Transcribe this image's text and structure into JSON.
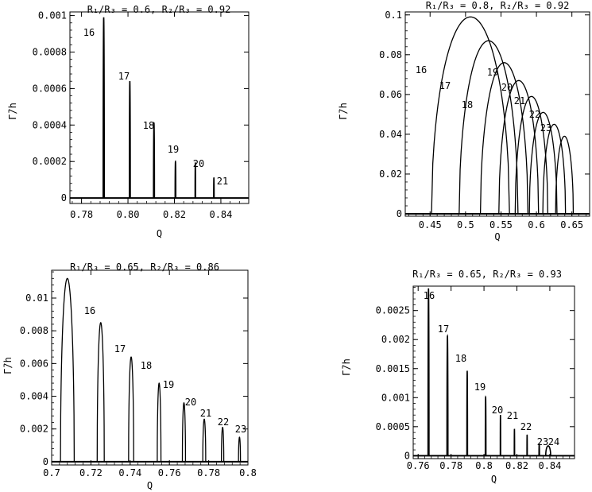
{
  "chart_data": [
    {
      "type": "line",
      "title": "R₁/R₃ = 0.6, R₂/R₃ = 0.92",
      "xlabel": "Q",
      "ylabel": "Γ̄/h",
      "xlim": [
        0.775,
        0.852
      ],
      "ylim": [
        -3e-05,
        0.00102
      ],
      "x_ticks": [
        0.78,
        0.8,
        0.82,
        0.84
      ],
      "x_tick_labels": [
        "0.78",
        "0.80",
        "0.82",
        "0.84"
      ],
      "y_ticks": [
        0,
        0.0002,
        0.0004,
        0.0006,
        0.0008,
        0.001
      ],
      "y_tick_labels": [
        "0",
        "0.0002",
        "0.0004",
        "0.0006",
        "0.0008",
        "0.001"
      ],
      "shape": "spike",
      "resonances": [
        {
          "label": "16",
          "center": 0.7895,
          "peak": 0.00099,
          "left": 0.7893,
          "right": 0.7898
        },
        {
          "label": "17",
          "center": 0.8008,
          "peak": 0.00064,
          "left": 0.8006,
          "right": 0.801
        },
        {
          "label": "18",
          "center": 0.8112,
          "peak": 0.00041,
          "left": 0.811,
          "right": 0.8114
        },
        {
          "label": "19",
          "center": 0.8204,
          "peak": 0.0002,
          "left": 0.8203,
          "right": 0.8206
        },
        {
          "label": "20",
          "center": 0.829,
          "peak": 0.00019,
          "left": 0.8289,
          "right": 0.8291
        },
        {
          "label": "21",
          "center": 0.837,
          "peak": 0.00011,
          "left": 0.8369,
          "right": 0.8371
        }
      ]
    },
    {
      "type": "line",
      "title": "R₁/R₃ = 0.8, R₂/R₃ = 0.92",
      "xlabel": "Q",
      "ylabel": "Γ̄/h",
      "xlim": [
        0.415,
        0.675
      ],
      "ylim": [
        -0.0012,
        0.1015
      ],
      "x_ticks": [
        0.45,
        0.5,
        0.55,
        0.6,
        0.65
      ],
      "x_tick_labels": [
        "0.45",
        "0.5",
        "0.55",
        "0.6",
        "0.65"
      ],
      "y_ticks": [
        0,
        0.02,
        0.04,
        0.06,
        0.08,
        0.1
      ],
      "y_tick_labels": [
        "0",
        "0.02",
        "0.04",
        "0.06",
        "0.08",
        "0.1"
      ],
      "shape": "dome",
      "resonances": [
        {
          "label": "16",
          "left": 0.452,
          "right": 0.562,
          "peak": 0.099
        },
        {
          "label": "17",
          "left": 0.491,
          "right": 0.574,
          "peak": 0.087
        },
        {
          "label": "18",
          "left": 0.521,
          "right": 0.588,
          "peak": 0.076
        },
        {
          "label": "19",
          "left": 0.547,
          "right": 0.603,
          "peak": 0.067
        },
        {
          "label": "20",
          "left": 0.57,
          "right": 0.616,
          "peak": 0.059
        },
        {
          "label": "21",
          "left": 0.59,
          "right": 0.629,
          "peak": 0.051
        },
        {
          "label": "22",
          "left": 0.609,
          "right": 0.641,
          "peak": 0.045
        },
        {
          "label": "23",
          "left": 0.627,
          "right": 0.652,
          "peak": 0.039
        }
      ]
    },
    {
      "type": "line",
      "title": "R₁/R₃ = 0.65, R₂/R₃ = 0.86",
      "xlabel": "Q",
      "ylabel": "Γ̄/h",
      "xlim": [
        0.7,
        0.8
      ],
      "ylim": [
        -0.0002,
        0.0117
      ],
      "x_ticks": [
        0.7,
        0.72,
        0.74,
        0.76,
        0.78,
        0.8
      ],
      "x_tick_labels": [
        "0.7",
        "0.72",
        "0.74",
        "0.76",
        "0.78",
        "0.8"
      ],
      "y_ticks": [
        0,
        0.002,
        0.004,
        0.006,
        0.008,
        0.01
      ],
      "y_tick_labels": [
        "0",
        "0.002",
        "0.004",
        "0.006",
        "0.008",
        "0.01"
      ],
      "shape": "dome",
      "resonances": [
        {
          "label": "16",
          "left": 0.7045,
          "right": 0.7115,
          "peak": 0.0112
        },
        {
          "label": "17",
          "left": 0.7232,
          "right": 0.7268,
          "peak": 0.0085
        },
        {
          "label": "18",
          "left": 0.7392,
          "right": 0.7418,
          "peak": 0.0064
        },
        {
          "label": "19",
          "left": 0.7538,
          "right": 0.7557,
          "peak": 0.0048
        },
        {
          "label": "20",
          "left": 0.7666,
          "right": 0.7682,
          "peak": 0.0036
        },
        {
          "label": "21",
          "left": 0.777,
          "right": 0.7785,
          "peak": 0.0026
        },
        {
          "label": "22",
          "left": 0.7865,
          "right": 0.7877,
          "peak": 0.0021
        },
        {
          "label": "23",
          "left": 0.7952,
          "right": 0.7962,
          "peak": 0.0015
        }
      ]
    },
    {
      "type": "line",
      "title": "R₁/R₃ = 0.65, R₂/R₃ = 0.93",
      "xlabel": "Q",
      "ylabel": "Γ̄/h",
      "xlim": [
        0.757,
        0.855
      ],
      "ylim": [
        -5e-05,
        0.00292
      ],
      "x_ticks": [
        0.76,
        0.78,
        0.8,
        0.82,
        0.84
      ],
      "x_tick_labels": [
        "0.76",
        "0.78",
        "0.8",
        "0.82",
        "0.84"
      ],
      "y_ticks": [
        0,
        0.0005,
        0.001,
        0.0015,
        0.002,
        0.0025
      ],
      "y_tick_labels": [
        "0",
        "0.0005",
        "0.001",
        "0.0015",
        "0.002",
        "0.0025"
      ],
      "shape": "spike",
      "resonances": [
        {
          "label": "16",
          "center": 0.7663,
          "peak": 0.00288,
          "left": 0.766,
          "right": 0.7666
        },
        {
          "label": "17",
          "center": 0.7778,
          "peak": 0.00206,
          "left": 0.7775,
          "right": 0.7781
        },
        {
          "label": "18",
          "center": 0.7898,
          "peak": 0.00146,
          "left": 0.7896,
          "right": 0.79
        },
        {
          "label": "19",
          "center": 0.801,
          "peak": 0.00101,
          "left": 0.8008,
          "right": 0.8012
        },
        {
          "label": "20",
          "center": 0.81,
          "peak": 0.0007,
          "left": 0.8099,
          "right": 0.8101
        },
        {
          "label": "21",
          "center": 0.8185,
          "peak": 0.00046,
          "left": 0.8184,
          "right": 0.8186
        },
        {
          "label": "22",
          "center": 0.8262,
          "peak": 0.00036,
          "left": 0.8261,
          "right": 0.8263
        },
        {
          "label": "23",
          "center": 0.8335,
          "peak": 0.0002,
          "left": 0.8334,
          "right": 0.8337
        },
        {
          "label": "24",
          "center": 0.839,
          "peak": 0.00017,
          "left": 0.8375,
          "right": 0.8405
        }
      ]
    }
  ]
}
